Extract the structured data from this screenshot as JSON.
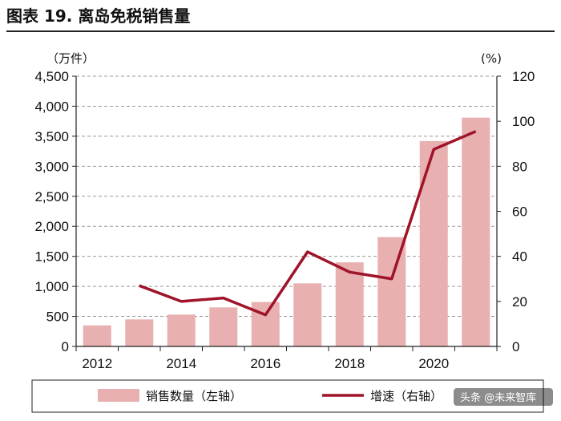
{
  "header": {
    "title": "图表 19. 离岛免税销售量"
  },
  "watermark": "头条 @未来智库",
  "colors": {
    "bar": "#e8b0b0",
    "line": "#a0142a",
    "grid": "#999999",
    "axis": "#222222"
  },
  "chart_data": {
    "type": "bar+line",
    "title": "图表 19. 离岛免税销售量",
    "x": [
      2012,
      2013,
      2014,
      2015,
      2016,
      2017,
      2018,
      2019,
      2020,
      2021
    ],
    "x_tick_labels": [
      "2012",
      "2014",
      "2016",
      "2018",
      "2020"
    ],
    "y_left": {
      "unit": "（万件）",
      "lim": [
        0,
        4500
      ],
      "ticks": [
        "0",
        "500",
        "1,000",
        "1,500",
        "2,000",
        "2,500",
        "3,000",
        "3,500",
        "4,000",
        "4,500"
      ]
    },
    "y_right": {
      "unit": "(%)",
      "lim": [
        0,
        120
      ],
      "ticks": [
        "0",
        "20",
        "40",
        "60",
        "80",
        "100",
        "120"
      ]
    },
    "grid": "horizontal dashed",
    "legend_position": "bottom",
    "series": [
      {
        "name": "销售数量（左轴）",
        "type": "bar",
        "axis": "left",
        "values": [
          350,
          450,
          530,
          650,
          740,
          1050,
          1400,
          1820,
          3420,
          3810
        ]
      },
      {
        "name": "增速（右轴）",
        "type": "line",
        "axis": "right",
        "values": [
          null,
          27,
          20,
          21.5,
          14,
          42,
          33,
          30,
          87.5,
          95.5
        ]
      }
    ]
  }
}
